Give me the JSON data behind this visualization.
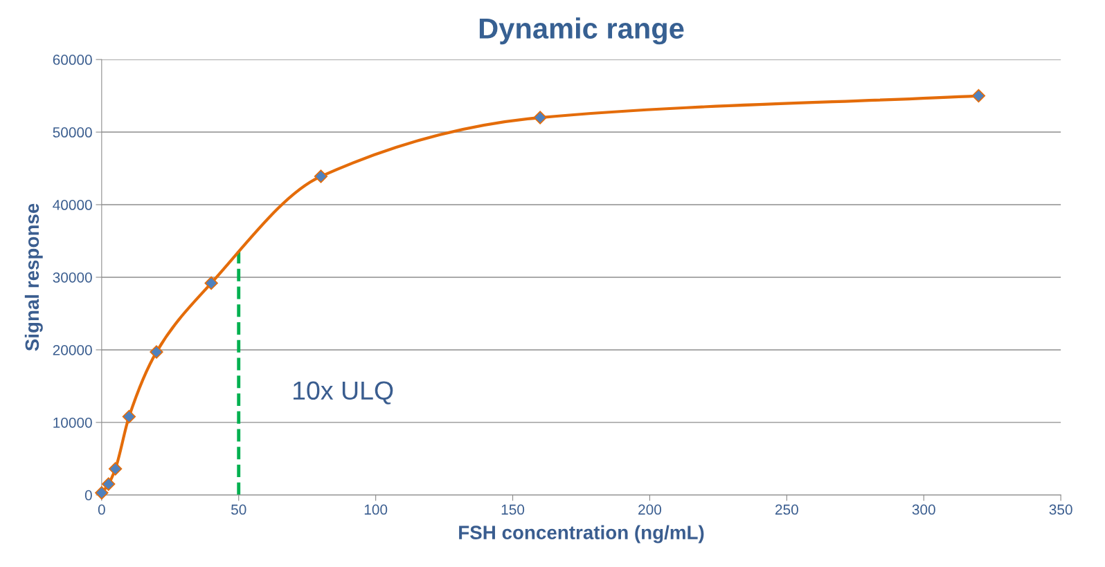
{
  "chart_data": {
    "type": "line",
    "title": "Dynamic range",
    "xlabel": "FSH concentration (ng/mL)",
    "ylabel": "Signal response",
    "x": [
      0,
      2.5,
      5,
      10,
      20,
      40,
      80,
      160,
      320
    ],
    "series": [
      {
        "color": "#e46c0a",
        "colors": [
          "#4f81bd",
          "#4f81bd",
          "#4f81bd",
          "#4f81bd",
          "#4f81bd",
          "#4f81bd",
          "#4f81bd",
          "#4f81bd",
          "#4f81bd"
        ],
        "values": [
          300,
          1500,
          3600,
          10800,
          19700,
          29200,
          43900,
          52000,
          55000
        ]
      }
    ],
    "xlim": [
      0,
      350
    ],
    "xticks": [
      0,
      50,
      100,
      150,
      200,
      250,
      300,
      350
    ],
    "ylim": [
      0,
      60000
    ],
    "yticks": [
      0,
      10000,
      20000,
      30000,
      40000,
      50000,
      60000
    ],
    "ref_lines": [
      {
        "axis": "x",
        "value": 50,
        "label": "10x ULQ",
        "color": "#00b050",
        "line_style": "dashed"
      }
    ],
    "grid": "y",
    "marker": "diamond",
    "line_style": "solid",
    "legend": false
  }
}
